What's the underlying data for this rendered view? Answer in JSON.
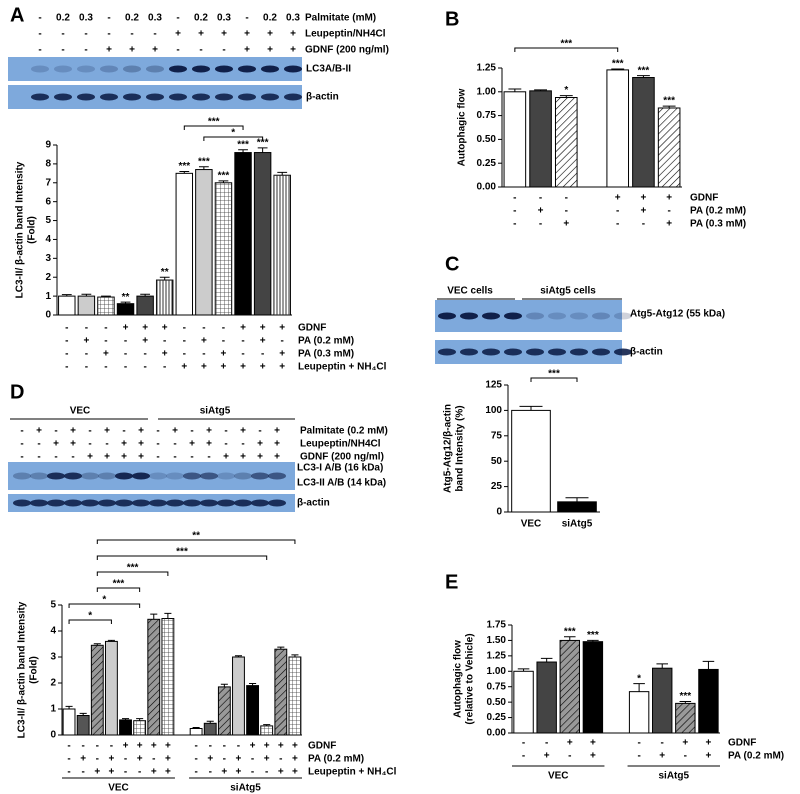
{
  "chart_data": [
    {
      "type": "bar",
      "panel": "A",
      "ylabel": [
        "LC3-II/ β-actin band Intensity",
        "(Fold)"
      ],
      "values": [
        1.0,
        1.0,
        0.95,
        0.6,
        1.0,
        1.85,
        7.5,
        7.7,
        7.0,
        8.6,
        8.6,
        7.4
      ],
      "errors": [
        0.08,
        0.1,
        0.05,
        0.08,
        0.1,
        0.15,
        0.1,
        0.15,
        0.1,
        0.15,
        0.25,
        0.15
      ],
      "colors": [
        "#ffffff",
        "#cccccc",
        "#ffffff",
        "#000000",
        "#444444",
        "#ffffff",
        "#ffffff",
        "#cccccc",
        "#ffffff",
        "#000000",
        "#444444",
        "#ffffff"
      ],
      "patterns": [
        null,
        null,
        "grid",
        null,
        null,
        "vstripe",
        null,
        null,
        "grid",
        null,
        null,
        "vstripe"
      ],
      "stars": [
        null,
        null,
        null,
        "**",
        null,
        "**",
        "***",
        "***",
        "***",
        "***",
        "***",
        null
      ],
      "brackets": [
        {
          "from": 7,
          "to": 10,
          "label": "*"
        },
        {
          "from": 6,
          "to": 9,
          "label": "***"
        }
      ],
      "ylim": [
        0,
        9
      ],
      "yticks": [
        0,
        1,
        2,
        3,
        4,
        5,
        6,
        7,
        8,
        9
      ],
      "conditions": [
        {
          "label": "GDNF",
          "signs": [
            "-",
            "-",
            "-",
            "+",
            "+",
            "+",
            "-",
            "-",
            "-",
            "+",
            "+",
            "+"
          ]
        },
        {
          "label": "PA (0.2 mM)",
          "signs": [
            "-",
            "+",
            "-",
            "-",
            "+",
            "-",
            "-",
            "+",
            "-",
            "-",
            "+",
            "-"
          ]
        },
        {
          "label": "PA (0.3 mM)",
          "signs": [
            "-",
            "-",
            "+",
            "-",
            "-",
            "+",
            "-",
            "-",
            "+",
            "-",
            "-",
            "+"
          ]
        },
        {
          "label": "Leupeptin + NH₄Cl",
          "signs": [
            "-",
            "-",
            "-",
            "-",
            "-",
            "-",
            "+",
            "+",
            "+",
            "+",
            "+",
            "+"
          ]
        }
      ]
    },
    {
      "type": "bar",
      "panel": "B",
      "ylabel": [
        "Autophagic flow"
      ],
      "values": [
        1.0,
        1.01,
        0.94,
        1.23,
        1.15,
        0.83
      ],
      "errors": [
        0.03,
        0.01,
        0.02,
        0.01,
        0.02,
        0.02
      ],
      "colors": [
        "#ffffff",
        "#444444",
        "#ffffff",
        "#ffffff",
        "#444444",
        "#ffffff"
      ],
      "patterns": [
        null,
        null,
        "hatch",
        null,
        null,
        "hatch"
      ],
      "stars": [
        null,
        null,
        "*",
        "***",
        "***",
        "***"
      ],
      "brackets": [
        {
          "from": 0,
          "to": 3,
          "label": "***"
        }
      ],
      "ylim": [
        0,
        1.25
      ],
      "yticks": [
        {
          "value": 0,
          "label": "0.00"
        },
        0.25,
        {
          "value": 0.5,
          "label": "0.50"
        },
        0.75,
        {
          "value": 1,
          "label": "1.00"
        },
        1.25
      ],
      "conditions": [
        {
          "label": "GDNF",
          "signs": [
            "-",
            "-",
            "-",
            "+",
            "+",
            "+"
          ]
        },
        {
          "label": "PA (0.2 mM)",
          "signs": [
            "-",
            "+",
            "-",
            "-",
            "+",
            "-"
          ]
        },
        {
          "label": "PA (0.3 mM)",
          "signs": [
            "-",
            "-",
            "+",
            "-",
            "-",
            "+"
          ]
        }
      ]
    },
    {
      "type": "bar",
      "panel": "C",
      "ylabel": [
        "Atg5-Atg12/β-actin",
        "band Intensity (%)"
      ],
      "categories": [
        "VEC",
        "siAtg5"
      ],
      "values": [
        100,
        10
      ],
      "errors": [
        4,
        4
      ],
      "colors": [
        "#ffffff",
        "#000000"
      ],
      "brackets": [
        {
          "from": 0,
          "to": 1,
          "label": "***"
        }
      ],
      "ylim": [
        0,
        125
      ],
      "yticks": [
        0,
        25,
        50,
        75,
        100,
        125
      ]
    },
    {
      "type": "bar",
      "panel": "D",
      "ylabel": [
        "LC3-II/ β-actin band Intensity",
        "(Fold)"
      ],
      "values": [
        1.0,
        0.75,
        3.45,
        3.6,
        0.58,
        0.55,
        4.45,
        4.48,
        0.25,
        0.45,
        1.85,
        3.0,
        1.9,
        0.35,
        3.3,
        3.0
      ],
      "errors": [
        0.1,
        0.08,
        0.06,
        0.04,
        0.05,
        0.08,
        0.2,
        0.2,
        0.04,
        0.08,
        0.1,
        0.05,
        0.08,
        0.05,
        0.08,
        0.08
      ],
      "colors": [
        "#ffffff",
        "#555555",
        "#999999",
        "#cccccc",
        "#000000",
        "#ffffff",
        "#999999",
        "#ffffff",
        "#ffffff",
        "#555555",
        "#999999",
        "#cccccc",
        "#000000",
        "#ffffff",
        "#999999",
        "#ffffff"
      ],
      "patterns": [
        null,
        null,
        "hatch",
        null,
        null,
        "grid",
        "hatch",
        "grid",
        null,
        null,
        "hatch",
        null,
        null,
        "grid",
        "hatch",
        "grid"
      ],
      "brackets": [
        {
          "from": 0,
          "to": 3,
          "label": "*"
        },
        {
          "from": 0,
          "to": 5,
          "label": "*"
        },
        {
          "from": 2,
          "to": 5,
          "label": "***"
        },
        {
          "from": 2,
          "to": 7,
          "label": "***"
        },
        {
          "from": 2,
          "to": 13,
          "label": "***"
        },
        {
          "from": 2,
          "to": 15,
          "label": "**"
        }
      ],
      "ylim": [
        0,
        5
      ],
      "yticks": [
        0,
        1,
        2,
        3,
        4,
        5
      ],
      "conditions": [
        {
          "label": "GDNF",
          "signs": [
            "-",
            "-",
            "-",
            "-",
            "+",
            "+",
            "+",
            "+",
            "-",
            "-",
            "-",
            "-",
            "+",
            "+",
            "+",
            "+"
          ]
        },
        {
          "label": "PA (0.2 mM)",
          "signs": [
            "-",
            "+",
            "-",
            "+",
            "-",
            "+",
            "-",
            "+",
            "-",
            "+",
            "-",
            "+",
            "-",
            "+",
            "-",
            "+"
          ]
        },
        {
          "label": "Leupeptin + NH₄Cl",
          "signs": [
            "-",
            "-",
            "+",
            "+",
            "-",
            "-",
            "+",
            "+",
            "-",
            "-",
            "+",
            "+",
            "-",
            "-",
            "+",
            "+"
          ]
        }
      ],
      "groups": [
        "VEC",
        "siAtg5"
      ]
    },
    {
      "type": "bar",
      "panel": "E",
      "ylabel": [
        "Autophagic flow",
        "(relative to Vehicle)"
      ],
      "values": [
        1.0,
        1.15,
        1.5,
        1.48,
        0.67,
        1.05,
        0.48,
        1.03
      ],
      "errors": [
        0.04,
        0.06,
        0.06,
        0.02,
        0.13,
        0.07,
        0.03,
        0.13
      ],
      "colors": [
        "#ffffff",
        "#444444",
        "#999999",
        "#000000",
        "#ffffff",
        "#444444",
        "#999999",
        "#000000"
      ],
      "patterns": [
        null,
        null,
        "hatch",
        null,
        null,
        null,
        "hatch",
        null
      ],
      "stars": [
        null,
        null,
        "***",
        "***",
        "*",
        null,
        "***",
        null
      ],
      "ylim": [
        0,
        1.75
      ],
      "yticks": [
        {
          "value": 0,
          "label": "0.00"
        },
        0.25,
        {
          "value": 0.5,
          "label": "0.50"
        },
        0.75,
        {
          "value": 1,
          "label": "1.00"
        },
        1.25,
        {
          "value": 1.5,
          "label": "1.50"
        },
        1.75
      ],
      "conditions": [
        {
          "label": "GDNF",
          "signs": [
            "-",
            "-",
            "+",
            "+",
            "-",
            "-",
            "+",
            "+"
          ]
        },
        {
          "label": "PA (0.2 mM)",
          "signs": [
            "-",
            "+",
            "-",
            "+",
            "-",
            "+",
            "-",
            "+"
          ]
        }
      ],
      "groups": [
        "VEC",
        "siAtg5"
      ]
    }
  ],
  "blots": [
    {
      "rows": [
        {
          "label": "Palmitate (mM)",
          "signs": [
            "-",
            "0.2",
            "0.3",
            "-",
            "0.2",
            "0.3",
            "-",
            "0.2",
            "0.3",
            "-",
            "0.2",
            "0.3"
          ]
        },
        {
          "label": "Leupeptin/NH4Cl",
          "signs": [
            "-",
            "-",
            "-",
            "-",
            "-",
            "-",
            "+",
            "+",
            "+",
            "+",
            "+",
            "+"
          ]
        },
        {
          "label": "GDNF (200 ng/ml)",
          "signs": [
            "-",
            "-",
            "-",
            "+",
            "+",
            "+",
            "-",
            "-",
            "-",
            "+",
            "+",
            "+"
          ]
        }
      ],
      "bands": [
        "LC3A/B-II",
        "β-actin"
      ]
    },
    {
      "groups": [
        "VEC cells",
        "siAtg5 cells"
      ],
      "bands": [
        "Atg5-Atg12 (55 kDa)",
        "β-actin"
      ]
    },
    {
      "groups": [
        "VEC",
        "siAtg5"
      ],
      "rows": [
        {
          "label": "Palmitate (0.2 mM)",
          "signs": [
            "-",
            "+",
            "-",
            "+",
            "-",
            "+",
            "-",
            "+",
            "-",
            "+",
            "-",
            "+",
            "-",
            "+",
            "-",
            "+"
          ]
        },
        {
          "label": "Leupeptin/NH4Cl",
          "signs": [
            "-",
            "-",
            "+",
            "+",
            "-",
            "-",
            "+",
            "+",
            "-",
            "-",
            "+",
            "+",
            "-",
            "-",
            "+",
            "+"
          ]
        },
        {
          "label": "GDNF (200 ng/ml)",
          "signs": [
            "-",
            "-",
            "-",
            "-",
            "+",
            "+",
            "+",
            "+",
            "-",
            "-",
            "-",
            "-",
            "+",
            "+",
            "+",
            "+"
          ]
        }
      ],
      "bands": [
        "LC3-I A/B (16 kDa)",
        "LC3-II A/B (14 kDa)",
        "β-actin"
      ]
    }
  ]
}
